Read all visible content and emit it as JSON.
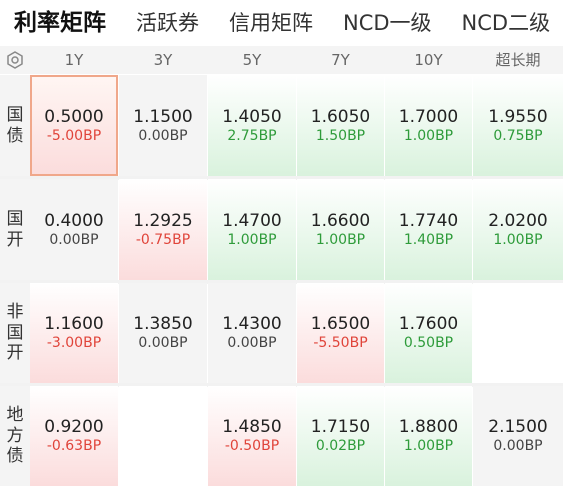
{
  "tabs": [
    "利率矩阵",
    "活跃券",
    "信用矩阵",
    "NCD一级",
    "NCD二级"
  ],
  "columns": [
    "1Y",
    "3Y",
    "5Y",
    "7Y",
    "10Y",
    "超长期"
  ],
  "colors": {
    "up": "#2e9b3a",
    "down": "#e0443a",
    "flat": "#444444"
  },
  "rows": [
    {
      "label": [
        "国",
        "债"
      ],
      "cells": [
        {
          "rate": "0.5000",
          "change": "-5.00BP",
          "dir": "down",
          "selected": true
        },
        {
          "rate": "1.1500",
          "change": "0.00BP",
          "dir": "flat"
        },
        {
          "rate": "1.4050",
          "change": "2.75BP",
          "dir": "up"
        },
        {
          "rate": "1.6050",
          "change": "1.50BP",
          "dir": "up"
        },
        {
          "rate": "1.7000",
          "change": "1.00BP",
          "dir": "up"
        },
        {
          "rate": "1.9550",
          "change": "0.75BP",
          "dir": "up"
        }
      ]
    },
    {
      "label": [
        "国",
        "开"
      ],
      "cells": [
        {
          "rate": "0.4000",
          "change": "0.00BP",
          "dir": "flat"
        },
        {
          "rate": "1.2925",
          "change": "-0.75BP",
          "dir": "down"
        },
        {
          "rate": "1.4700",
          "change": "1.00BP",
          "dir": "up"
        },
        {
          "rate": "1.6600",
          "change": "1.00BP",
          "dir": "up"
        },
        {
          "rate": "1.7740",
          "change": "1.40BP",
          "dir": "up"
        },
        {
          "rate": "2.0200",
          "change": "1.00BP",
          "dir": "up"
        }
      ]
    },
    {
      "label": [
        "非",
        "国",
        "开"
      ],
      "cells": [
        {
          "rate": "1.1600",
          "change": "-3.00BP",
          "dir": "down"
        },
        {
          "rate": "1.3850",
          "change": "0.00BP",
          "dir": "flat"
        },
        {
          "rate": "1.4300",
          "change": "0.00BP",
          "dir": "flat"
        },
        {
          "rate": "1.6500",
          "change": "-5.50BP",
          "dir": "down"
        },
        {
          "rate": "1.7600",
          "change": "0.50BP",
          "dir": "up"
        },
        null
      ]
    },
    {
      "label": [
        "地",
        "方",
        "债"
      ],
      "cells": [
        {
          "rate": "0.9200",
          "change": "-0.63BP",
          "dir": "down"
        },
        null,
        {
          "rate": "1.4850",
          "change": "-0.50BP",
          "dir": "down"
        },
        {
          "rate": "1.7150",
          "change": "0.02BP",
          "dir": "up"
        },
        {
          "rate": "1.8800",
          "change": "1.00BP",
          "dir": "up"
        },
        {
          "rate": "2.1500",
          "change": "0.00BP",
          "dir": "flat"
        }
      ]
    }
  ]
}
